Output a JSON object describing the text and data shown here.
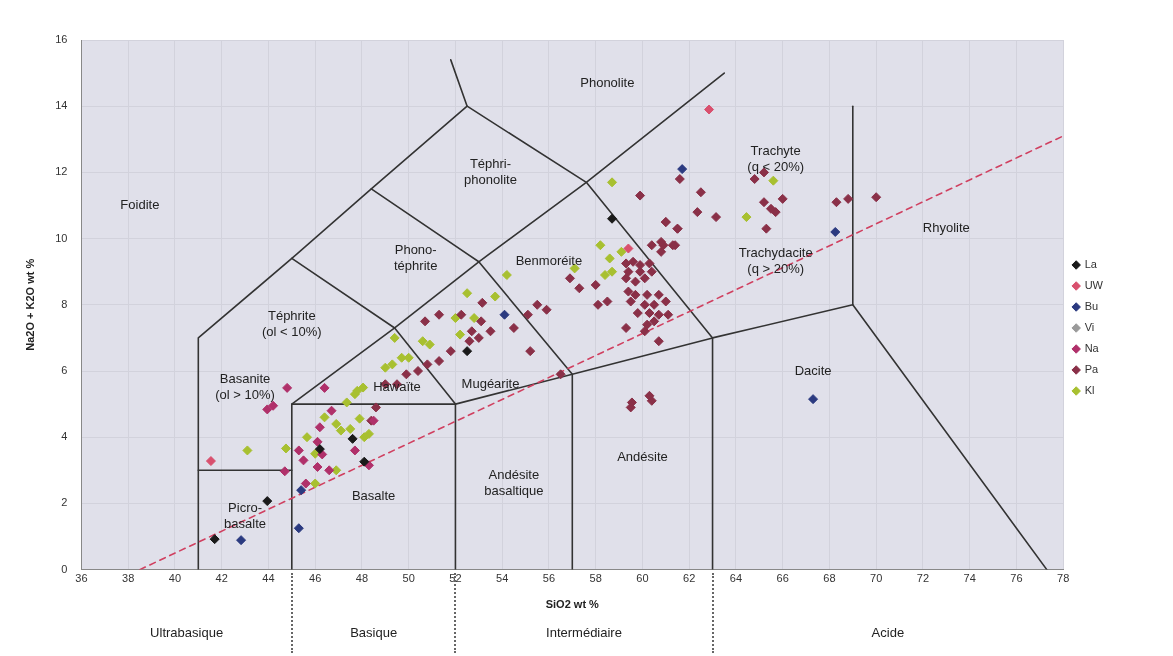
{
  "chart_data": {
    "type": "scatter",
    "xlabel": "SiO2 wt %",
    "ylabel": "Na2O + K2O wt %",
    "xlim": [
      36,
      78
    ],
    "ylim": [
      0,
      16
    ],
    "xticks": [
      36,
      38,
      40,
      42,
      44,
      46,
      48,
      50,
      52,
      54,
      56,
      58,
      60,
      62,
      64,
      66,
      68,
      70,
      72,
      74,
      76,
      78
    ],
    "yticks": [
      0,
      2,
      4,
      6,
      8,
      10,
      12,
      14,
      16
    ],
    "grid": true,
    "legend": "right",
    "marker": "diamond",
    "series": [
      {
        "name": "La",
        "color": "#1a1a1a",
        "x": [
          41.7,
          43.95,
          47.6,
          48.1,
          46.2,
          58.7,
          52.5
        ],
        "values": [
          0.92,
          2.07,
          3.95,
          3.26,
          3.64,
          10.6,
          6.6
        ]
      },
      {
        "name": "UW",
        "color": "#d9506e",
        "x": [
          41.54,
          62.85,
          59.4
        ],
        "values": [
          3.28,
          13.9,
          9.7
        ]
      },
      {
        "name": "Bu",
        "color": "#2b3a80",
        "x": [
          42.83,
          45.3,
          45.4,
          54.1,
          61.7,
          68.25,
          67.3
        ],
        "values": [
          0.89,
          1.25,
          2.4,
          7.7,
          12.1,
          10.2,
          5.15
        ]
      },
      {
        "name": "Vi",
        "color": "#9a9a9a"
      },
      {
        "name": "Na",
        "color": "#b0306a",
        "x": [
          43.95,
          44.2,
          44.8,
          44.7,
          46.4,
          45.3,
          45.5,
          46.2,
          46.1,
          46.1,
          46.6,
          46.7,
          47.7,
          48.3,
          45.6,
          46.3,
          48.5
        ],
        "values": [
          4.84,
          4.95,
          5.49,
          2.97,
          5.49,
          3.6,
          3.3,
          4.3,
          3.86,
          3.1,
          3.0,
          4.8,
          3.6,
          3.15,
          2.6,
          3.48,
          4.5
        ]
      },
      {
        "name": "Pa",
        "color": "#8a3048",
        "x": [
          53.15,
          51.3,
          50.7,
          52.25,
          53.1,
          54.5,
          53.5,
          52.7,
          53,
          52.6,
          51.8,
          51.3,
          50.8,
          55.2,
          55.5,
          55.9,
          55.1,
          56.9,
          57.3,
          58,
          58.1,
          58.5,
          50.4,
          49.9,
          49.5,
          49,
          48.6,
          48.4,
          59.5,
          60.4,
          59.9,
          56.5,
          59.3,
          59.6,
          59.9,
          60.3,
          60.4,
          59.9,
          59.4,
          59.3,
          59.7,
          60.1,
          59.4,
          59.7,
          60.2,
          60.7,
          59.5,
          60.1,
          60.5,
          61,
          59.8,
          60.3,
          60.7,
          61.1,
          60.2,
          60.5,
          60.1,
          60.7,
          59.3,
          61,
          61.5,
          60.9,
          61.4,
          60.8,
          60.4,
          61.6,
          62.5,
          62.35,
          63.15,
          64.8,
          65.2,
          65.2,
          65.5,
          65.7,
          66,
          65.3,
          68.3,
          68.8,
          70,
          61,
          61.5,
          61.3,
          60.8,
          59.55,
          60.3
        ],
        "values": [
          8.06,
          7.7,
          7.5,
          7.7,
          7.5,
          7.3,
          7.2,
          7.2,
          7.0,
          6.9,
          6.6,
          6.3,
          6.2,
          6.6,
          8.0,
          7.85,
          7.7,
          8.8,
          8.5,
          8.6,
          8.0,
          8.1,
          6.0,
          5.9,
          5.6,
          5.6,
          4.9,
          4.5,
          4.9,
          5.1,
          11.3,
          5.9,
          9.25,
          9.3,
          9.2,
          9.25,
          9.0,
          9.0,
          9.0,
          8.8,
          8.7,
          8.8,
          8.4,
          8.3,
          8.3,
          8.3,
          8.1,
          8.0,
          8.0,
          8.1,
          7.75,
          7.75,
          7.7,
          7.7,
          7.4,
          7.5,
          7.2,
          6.9,
          7.3,
          10.5,
          10.3,
          9.8,
          9.8,
          9.6,
          9.8,
          11.8,
          11.4,
          10.8,
          10.65,
          11.8,
          12.0,
          11.1,
          10.9,
          10.8,
          11.2,
          10.3,
          11.1,
          11.2,
          11.25,
          10.5,
          10.3,
          9.8,
          9.9,
          5.05,
          5.25
        ]
      },
      {
        "name": "Kl",
        "color": "#a8c030",
        "x": [
          54.2,
          52.5,
          53.7,
          52.8,
          52,
          52.2,
          49.4,
          50.6,
          50.9,
          49.7,
          49.3,
          50,
          49,
          47.7,
          48.1,
          58.2,
          58.6,
          57.1,
          58.4,
          59.1,
          58.7,
          58.7,
          65.6,
          64.45,
          43.1,
          44.75,
          45.65,
          46,
          46.4,
          46.9,
          47.1,
          47.5,
          47.35,
          47.8,
          48.05,
          47.9,
          48.3,
          46,
          46.9
        ],
        "values": [
          8.9,
          8.35,
          8.25,
          7.6,
          7.6,
          7.1,
          7.0,
          6.9,
          6.8,
          6.4,
          6.2,
          6.4,
          6.1,
          5.3,
          4.0,
          9.8,
          9.4,
          9.1,
          8.9,
          9.6,
          9.0,
          11.7,
          11.75,
          10.65,
          3.6,
          3.66,
          4.0,
          3.5,
          4.6,
          4.4,
          4.2,
          4.25,
          5.05,
          5.4,
          5.5,
          4.56,
          4.1,
          2.6,
          3.0
        ]
      },
      {
        "type": "line",
        "color": "#d04060",
        "line_style": "dashed",
        "marker": "none",
        "x": [
          38.5,
          78
        ],
        "values": [
          0,
          13.1
        ]
      },
      {
        "type": "line",
        "color": "#333333",
        "marker": "none",
        "x": [
          41,
          41,
          45,
          48.4,
          52.5,
          51.8
        ],
        "values": [
          0,
          7,
          9.4,
          11.5,
          14,
          15.4
        ]
      },
      {
        "type": "line",
        "color": "#333333",
        "marker": "none",
        "x": [
          41,
          45
        ],
        "values": [
          3,
          3
        ]
      },
      {
        "type": "line",
        "color": "#333333",
        "marker": "none",
        "x": [
          45,
          45,
          49.4,
          53,
          57.6,
          63.5
        ],
        "values": [
          0,
          5,
          7.3,
          9.3,
          11.7,
          15
        ]
      },
      {
        "type": "line",
        "color": "#333333",
        "marker": "none",
        "x": [
          45,
          52,
          57,
          63,
          69,
          77.3
        ],
        "values": [
          5,
          5,
          5.9,
          7,
          8,
          0
        ]
      },
      {
        "type": "line",
        "color": "#333333",
        "marker": "none",
        "x": [
          45,
          49.4,
          52,
          52
        ],
        "values": [
          9.4,
          7.3,
          5,
          0
        ]
      },
      {
        "type": "line",
        "color": "#333333",
        "marker": "none",
        "x": [
          48.4,
          53,
          57,
          57
        ],
        "values": [
          11.5,
          9.3,
          5.9,
          0
        ]
      },
      {
        "type": "line",
        "color": "#333333",
        "marker": "none",
        "x": [
          52.5,
          57.6,
          63,
          63
        ],
        "values": [
          14,
          11.7,
          7,
          0
        ]
      },
      {
        "type": "line",
        "color": "#333333",
        "marker": "none",
        "x": [
          69,
          69
        ],
        "values": [
          8,
          14
        ]
      }
    ],
    "annotations": [
      "Foidite",
      "Picro-\nbasalte",
      "Basalte",
      "Andésite\nbasaltique",
      "Andésite",
      "Dacite",
      "Rhyolite",
      "Basanite\n(ol > 10%)",
      "Téphrite\n(ol < 10%)",
      "Hawaïte",
      "Mugéarite",
      "Benmoréite",
      "Phono-\ntéphrite",
      "Téphri-\nphonolite",
      "Phonolite",
      "Trachyte\n(q < 20%)",
      "Trachydacite\n(q > 20%)",
      "Ultrabasique",
      "Basique",
      "Intermédiaire",
      "Acide"
    ]
  }
}
